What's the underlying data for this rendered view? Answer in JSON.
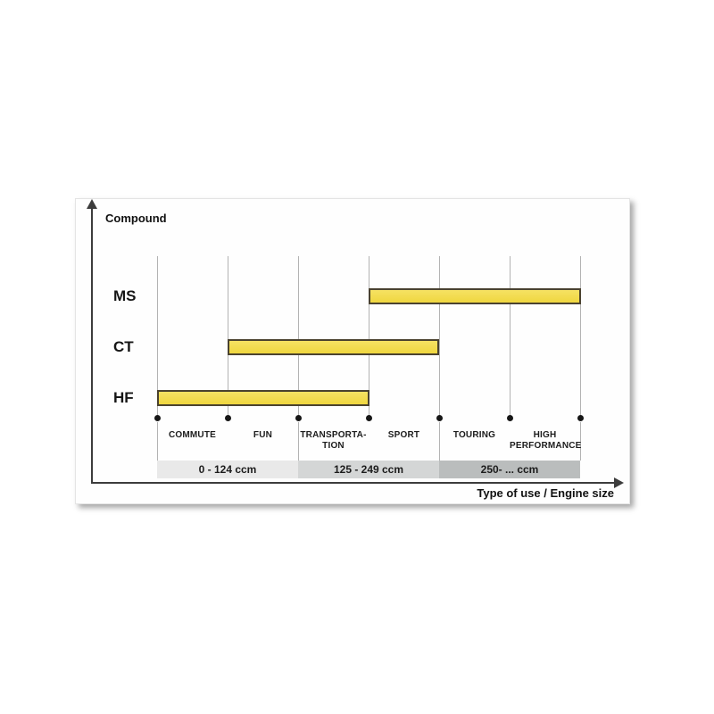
{
  "chart": {
    "y_axis_title": "Compound",
    "x_axis_title": "Type of use / Engine size"
  },
  "chart_data": {
    "type": "bar",
    "subtype": "horizontal-span-gantt",
    "ylabel": "Compound",
    "xlabel": "Type of use / Engine size",
    "title": "",
    "legend": false,
    "grid": true,
    "categories": [
      {
        "line1": "COMMUTE",
        "line2": ""
      },
      {
        "line1": "FUN",
        "line2": ""
      },
      {
        "line1": "TRANSPORTA-",
        "line2": "TION"
      },
      {
        "line1": "SPORT",
        "line2": ""
      },
      {
        "line1": "TOURING",
        "line2": ""
      },
      {
        "line1": "HIGH",
        "line2": "PERFORMANCE"
      }
    ],
    "rows": [
      {
        "label": "MS",
        "start": 3,
        "end": 6,
        "covers": [
          "SPORT",
          "TOURING",
          "HIGH PERFORMANCE"
        ]
      },
      {
        "label": "CT",
        "start": 1,
        "end": 4,
        "covers": [
          "FUN",
          "TRANSPORTATION",
          "SPORT"
        ]
      },
      {
        "label": "HF",
        "start": 0,
        "end": 3,
        "covers": [
          "COMMUTE",
          "FUN",
          "TRANSPORTATION"
        ]
      }
    ],
    "engine_size_bands": [
      {
        "label": "0 - 124 ccm",
        "start": 0,
        "end": 2,
        "color": "#e9e9e9"
      },
      {
        "label": "125 - 249 ccm",
        "start": 2,
        "end": 4,
        "color": "#d4d6d6"
      },
      {
        "label": "250- ... ccm",
        "start": 4,
        "end": 6,
        "color": "#babdbd"
      }
    ],
    "colors": {
      "bar_fill": "#f3dc4f",
      "bar_border": "#4a422f",
      "axis": "#3c3c3c",
      "gridline": "#b3b3b3",
      "text": "#111111"
    }
  }
}
